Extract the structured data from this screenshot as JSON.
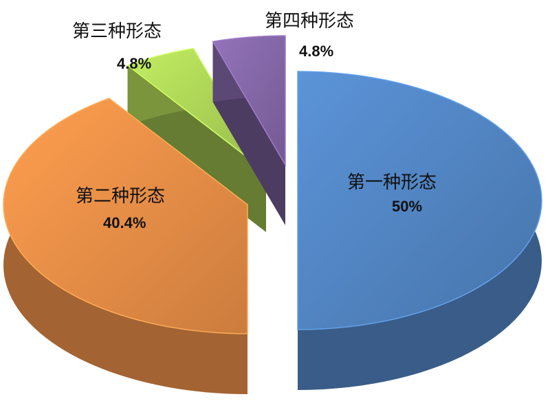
{
  "chart_data": {
    "type": "pie",
    "style": "3d-exploded",
    "title": "",
    "slices": [
      {
        "label": "第一种形态",
        "value": 50,
        "value_label": "50%",
        "color": "#4f81bd"
      },
      {
        "label": "第二种形态",
        "value": 40.4,
        "value_label": "40.4%",
        "color": "#e38a45"
      },
      {
        "label": "第三种形态",
        "value": 4.8,
        "value_label": "4.8%",
        "color": "#a9cf54"
      },
      {
        "label": "第四种形态",
        "value": 4.8,
        "value_label": "4.8%",
        "color": "#8064a2"
      }
    ],
    "legend": "none"
  }
}
